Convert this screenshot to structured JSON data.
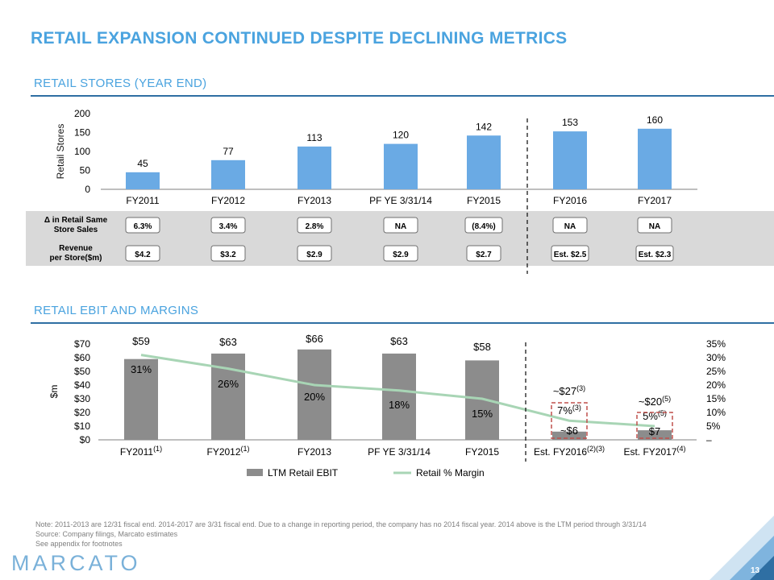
{
  "title": "RETAIL EXPANSION CONTINUED DESPITE DECLINING METRICS",
  "section1_title": "RETAIL STORES (YEAR END)",
  "section2_title": "RETAIL EBIT AND MARGINS",
  "colors": {
    "accent": "#4aa3df",
    "bar_blue": "#6aaae4",
    "bar_gray": "#8c8c8c",
    "margin_line": "#a8d5b5",
    "dashed_box": "#c0504d"
  },
  "chart_data": [
    {
      "type": "bar",
      "categories": [
        "FY2011",
        "FY2012",
        "FY2013",
        "PF YE 3/31/14",
        "FY2015",
        "FY2016",
        "FY2017"
      ],
      "values": [
        45,
        77,
        113,
        120,
        142,
        153,
        160
      ],
      "data_labels": [
        "45",
        "77",
        "113",
        "120",
        "142",
        "153",
        "160"
      ],
      "ylabel": "Retail Stores",
      "ylim": [
        0,
        200
      ],
      "yticks": [
        "0",
        "50",
        "100",
        "150",
        "200"
      ],
      "grid": false,
      "projection_divider_after": "FY2015",
      "table": {
        "rows": [
          {
            "label": [
              "Δ in Retail Same",
              "Store Sales"
            ],
            "cells": [
              "6.3%",
              "3.4%",
              "2.8%",
              "NA",
              "(8.4%)",
              "NA",
              "NA"
            ]
          },
          {
            "label": [
              "Revenue",
              "per Store($m)"
            ],
            "cells": [
              "$4.2",
              "$3.2",
              "$2.9",
              "$2.9",
              "$2.7",
              "Est. $2.5",
              "Est. $2.3"
            ]
          }
        ]
      }
    },
    {
      "type": "bar",
      "categories": [
        "FY2011",
        "FY2012",
        "FY2013",
        "PF YE 3/31/14",
        "FY2015",
        "Est. FY2016",
        "Est. FY2017"
      ],
      "category_footnotes": [
        "(1)",
        "(1)",
        "",
        "",
        "",
        "(2)(3)",
        "(4)"
      ],
      "series": [
        {
          "name": "LTM Retail EBIT",
          "type": "bar",
          "axis": "left",
          "values": [
            59,
            63,
            66,
            63,
            58,
            6,
            7
          ],
          "labels": [
            "$59",
            "$63",
            "$66",
            "$63",
            "$58",
            "~$6",
            "$7"
          ]
        },
        {
          "name": "Retail % Margin",
          "type": "line",
          "axis": "right",
          "values": [
            31,
            26,
            20,
            18,
            15,
            7,
            5
          ],
          "labels": [
            "31%",
            "26%",
            "20%",
            "18%",
            "15%",
            "7%",
            "5%"
          ]
        }
      ],
      "label_footnotes": {
        "margin_5": "(3)",
        "margin_6": "(5)"
      },
      "estimate_annotations": [
        {
          "text": "~$27",
          "footnote": "(3)"
        },
        {
          "text": "~$20",
          "footnote": "(5)"
        }
      ],
      "ylabel": "$m",
      "ylim": [
        0,
        70
      ],
      "yticks": [
        "$0",
        "$10",
        "$20",
        "$30",
        "$40",
        "$50",
        "$60",
        "$70"
      ],
      "y2lim": [
        0,
        35
      ],
      "y2ticks": [
        "–",
        "5%",
        "10%",
        "15%",
        "20%",
        "25%",
        "30%",
        "35%"
      ],
      "legend_position": "bottom",
      "grid": false,
      "projection_divider_after": "FY2015"
    }
  ],
  "notes": [
    "Note: 2011-2013 are 12/31 fiscal end. 2014-2017 are 3/31 fiscal end. Due to a change in reporting period, the company has no 2014 fiscal year. 2014 above is the LTM period through 3/31/14",
    "Source: Company filings, Marcato estimates",
    "See appendix for footnotes"
  ],
  "logo_text": "MARCATO",
  "page_number": "13"
}
